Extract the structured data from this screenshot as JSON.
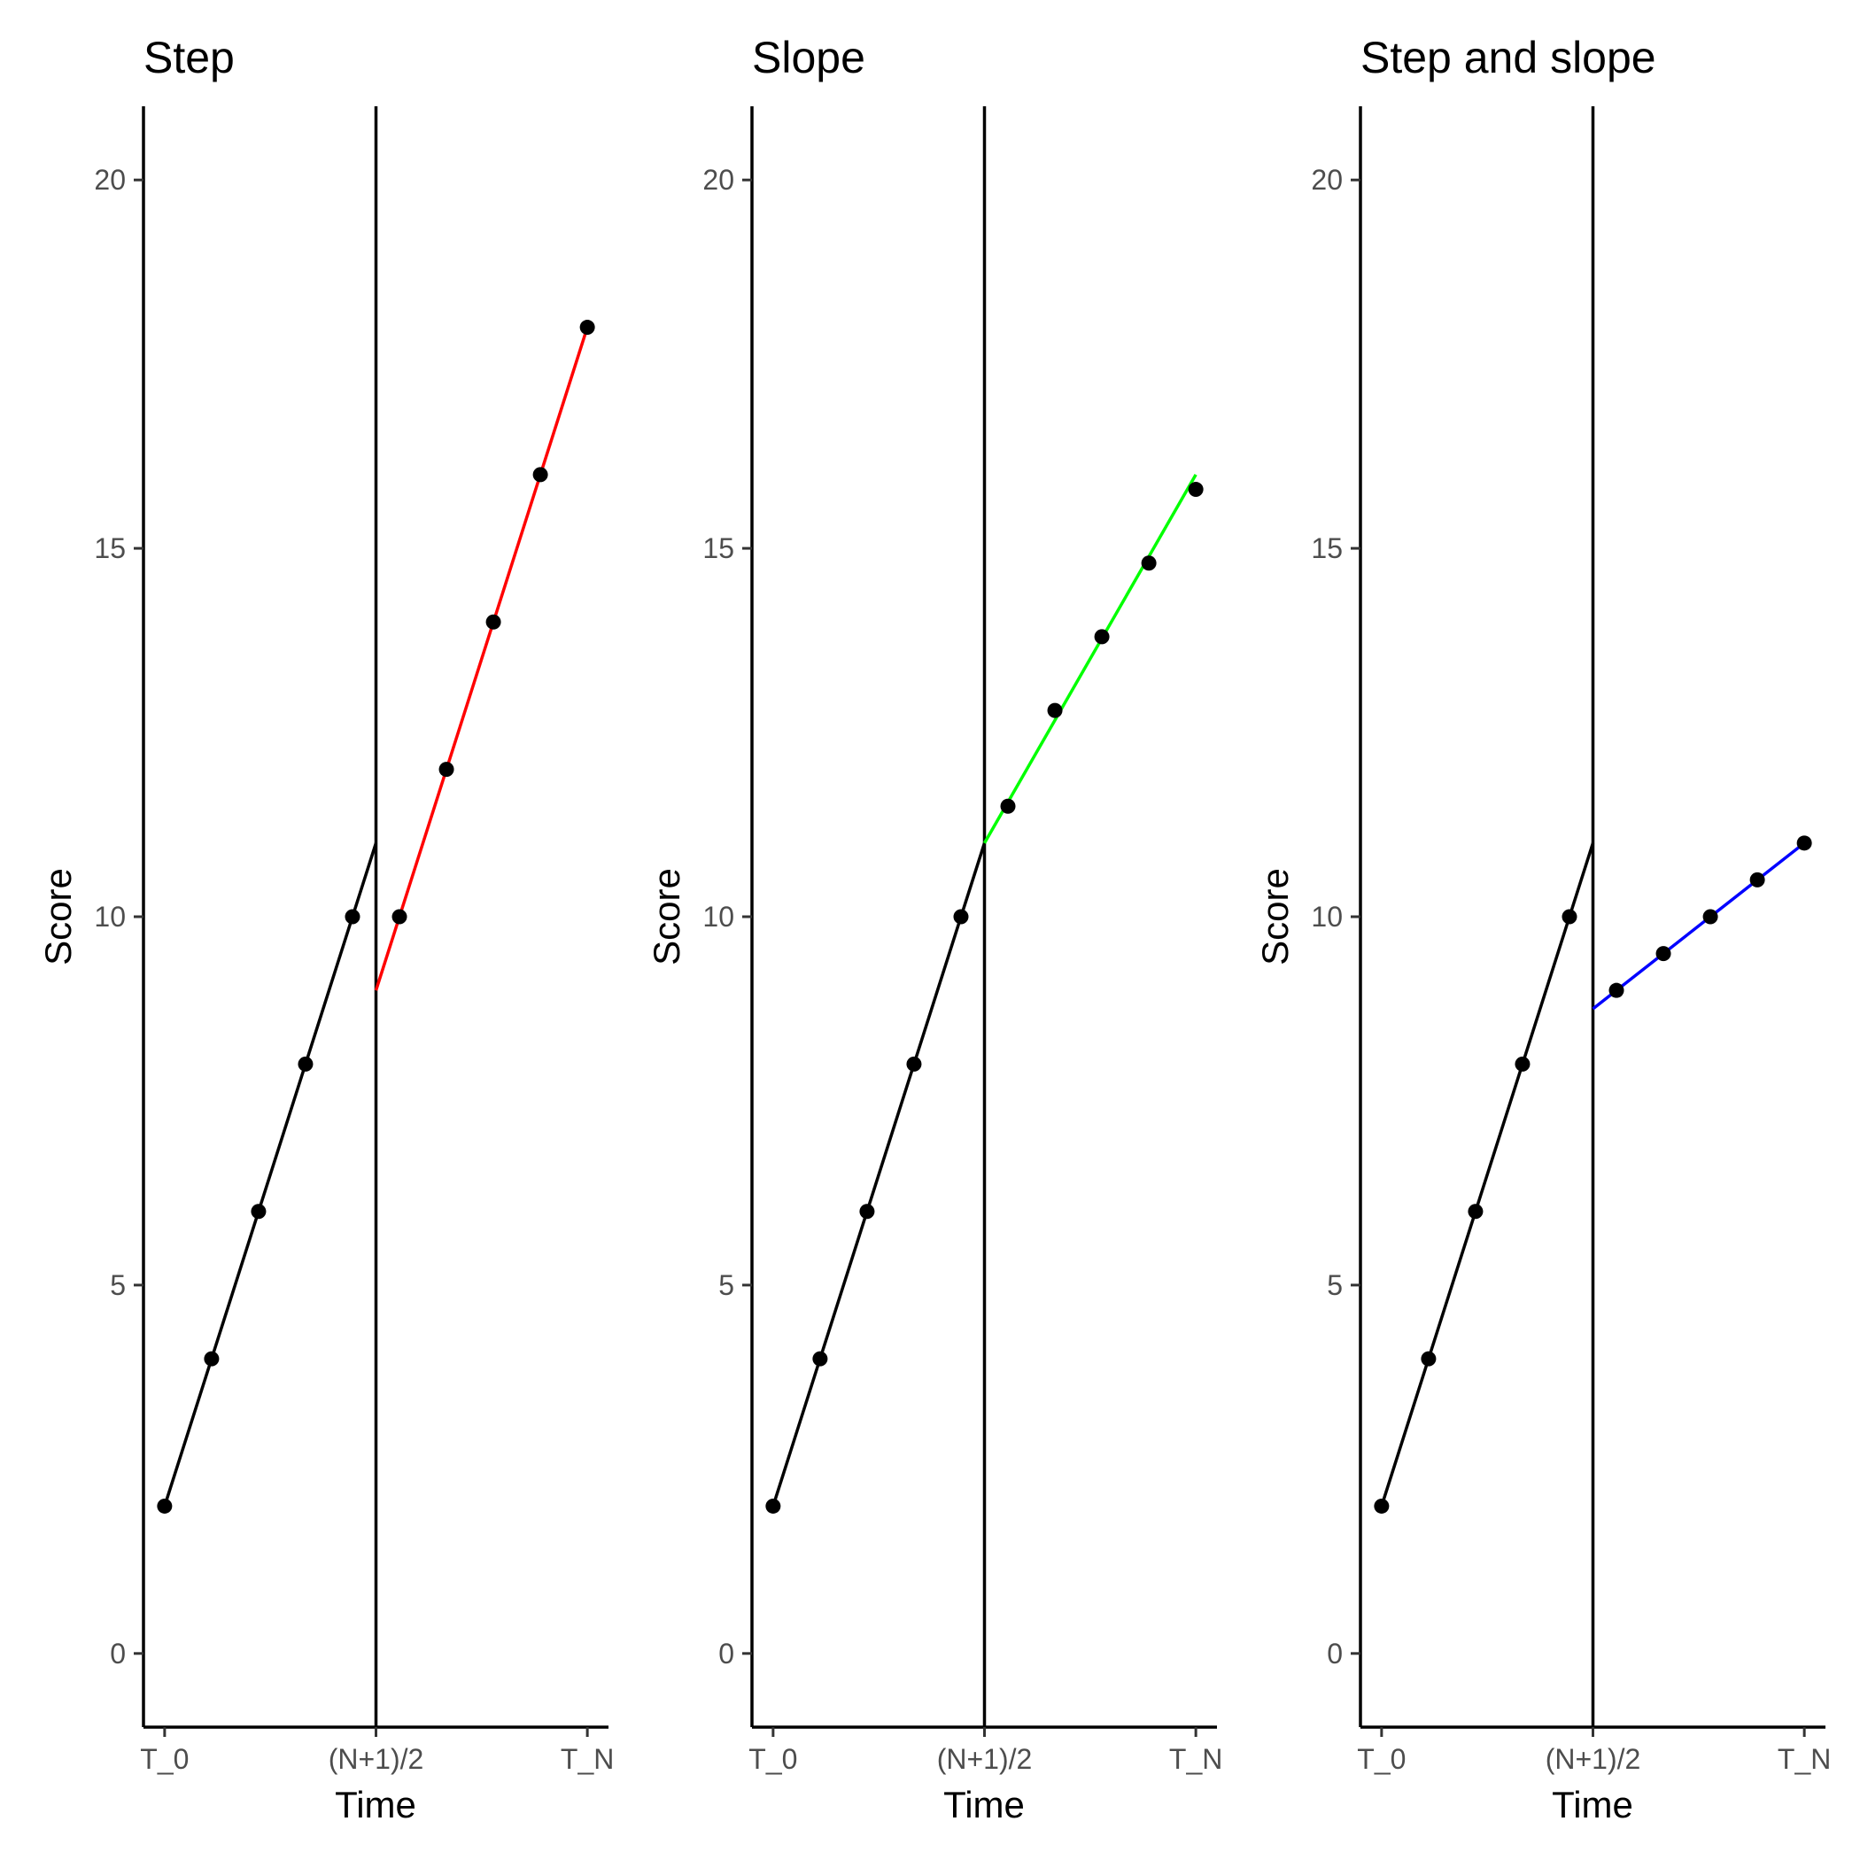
{
  "chart_data": [
    {
      "type": "line",
      "title": "Step",
      "xlabel": "Time",
      "ylabel": "Score",
      "x_ticks": [
        {
          "x": 1,
          "label": "T_0"
        },
        {
          "x": 5.5,
          "label": "(N+1)/2"
        },
        {
          "x": 10,
          "label": "T_N"
        }
      ],
      "y_ticks": [
        0,
        5,
        10,
        15,
        20
      ],
      "xlim": [
        0.55,
        10.45
      ],
      "ylim": [
        -1,
        21
      ],
      "intervention_x": 5.5,
      "grid": false,
      "pre_points": {
        "x": [
          1,
          2,
          3,
          4,
          5
        ],
        "y": [
          2,
          4,
          6,
          8,
          10
        ]
      },
      "pre_line": {
        "x": [
          1,
          5.5
        ],
        "y": [
          2,
          11
        ]
      },
      "post_points": {
        "x": [
          6,
          7,
          8,
          9,
          10
        ],
        "y": [
          10,
          12,
          14,
          16,
          18
        ]
      },
      "post_line": {
        "x": [
          5.5,
          10
        ],
        "y": [
          9,
          18
        ]
      },
      "post_color": "#ff0000"
    },
    {
      "type": "line",
      "title": "Slope",
      "xlabel": "Time",
      "ylabel": "Score",
      "x_ticks": [
        {
          "x": 1,
          "label": "T_0"
        },
        {
          "x": 5.5,
          "label": "(N+1)/2"
        },
        {
          "x": 10,
          "label": "T_N"
        }
      ],
      "y_ticks": [
        0,
        5,
        10,
        15,
        20
      ],
      "xlim": [
        0.55,
        10.45
      ],
      "ylim": [
        -1,
        21
      ],
      "intervention_x": 5.5,
      "grid": false,
      "pre_points": {
        "x": [
          1,
          2,
          3,
          4,
          5
        ],
        "y": [
          2,
          4,
          6,
          8,
          10
        ]
      },
      "pre_line": {
        "x": [
          1,
          5.5
        ],
        "y": [
          2,
          11
        ]
      },
      "post_points": {
        "x": [
          6,
          7,
          8,
          9,
          10
        ],
        "y": [
          11.5,
          12.8,
          13.8,
          14.8,
          15.8
        ]
      },
      "post_line": {
        "x": [
          5.5,
          10
        ],
        "y": [
          11,
          16
        ]
      },
      "post_color": "#00ff00"
    },
    {
      "type": "line",
      "title": "Step and slope",
      "xlabel": "Time",
      "ylabel": "Score",
      "x_ticks": [
        {
          "x": 1,
          "label": "T_0"
        },
        {
          "x": 5.5,
          "label": "(N+1)/2"
        },
        {
          "x": 10,
          "label": "T_N"
        }
      ],
      "y_ticks": [
        0,
        5,
        10,
        15,
        20
      ],
      "xlim": [
        0.55,
        10.45
      ],
      "ylim": [
        -1,
        21
      ],
      "intervention_x": 5.5,
      "grid": false,
      "pre_points": {
        "x": [
          1,
          2,
          3,
          4,
          5
        ],
        "y": [
          2,
          4,
          6,
          8,
          10
        ]
      },
      "pre_line": {
        "x": [
          1,
          5.5
        ],
        "y": [
          2,
          11
        ]
      },
      "post_points": {
        "x": [
          6,
          7,
          8,
          9,
          10
        ],
        "y": [
          9,
          9.5,
          10,
          10.5,
          11
        ]
      },
      "post_line": {
        "x": [
          5.5,
          10
        ],
        "y": [
          8.75,
          11
        ]
      },
      "post_color": "#0000ff"
    }
  ]
}
